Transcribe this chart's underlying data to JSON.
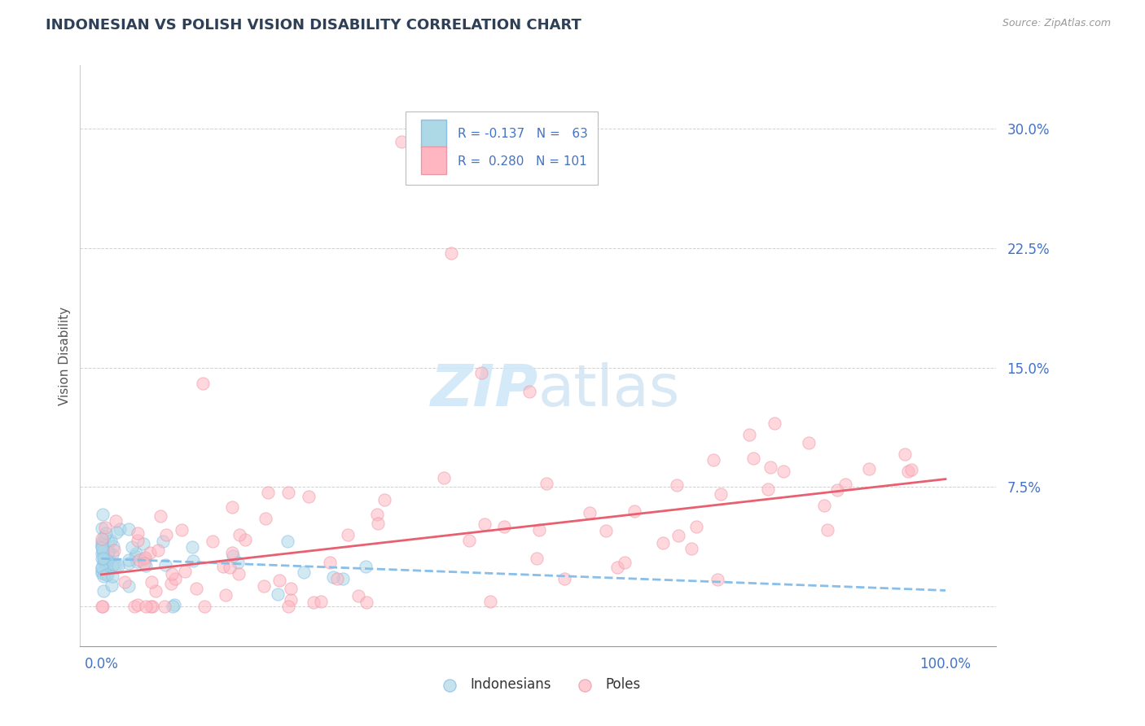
{
  "title": "INDONESIAN VS POLISH VISION DISABILITY CORRELATION CHART",
  "source": "Source: ZipAtlas.com",
  "ylabel": "Vision Disability",
  "yticks": [
    0.0,
    0.075,
    0.15,
    0.225,
    0.3
  ],
  "ytick_labels": [
    "",
    "7.5%",
    "15.0%",
    "22.5%",
    "30.0%"
  ],
  "xtick_labels": [
    "0.0%",
    "100.0%"
  ],
  "color_indonesian_fill": "#ADD8E6",
  "color_indonesian_edge": "#87BEEA",
  "color_pole_fill": "#FFB6C1",
  "color_pole_edge": "#E899A8",
  "color_line_indonesian": "#87BEEA",
  "color_line_pole": "#E86070",
  "color_axis_label": "#4472C4",
  "color_title": "#2E4057",
  "color_grid": "#CCCCCC",
  "color_watermark": "#D0E8F8",
  "R_indonesian": -0.137,
  "N_indonesian": 63,
  "R_pole": 0.28,
  "N_pole": 101,
  "ind_intercept": 0.03,
  "ind_slope": -0.02,
  "pole_intercept": 0.02,
  "pole_slope": 0.06
}
